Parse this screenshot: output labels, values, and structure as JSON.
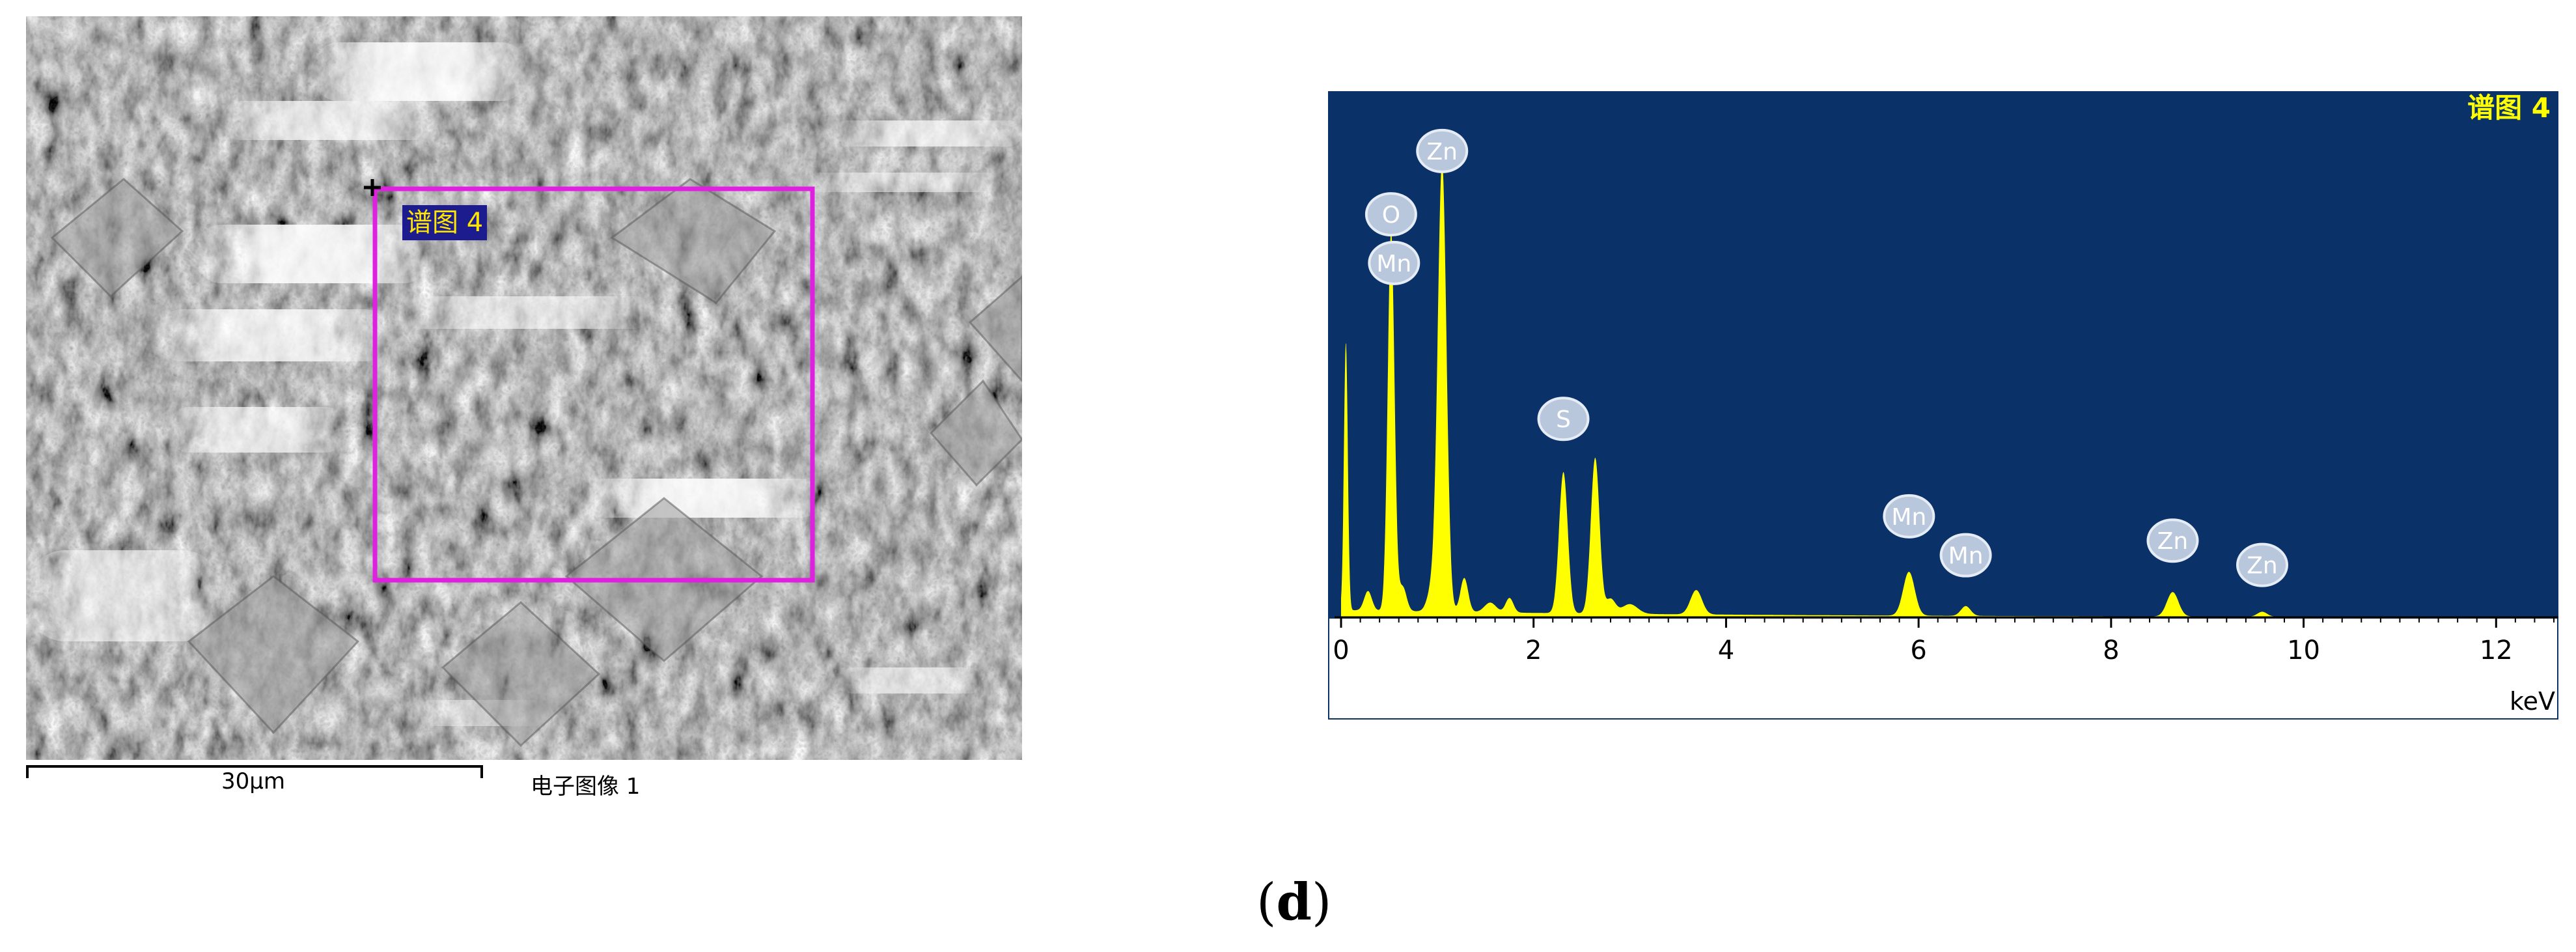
{
  "sem_image": {
    "region_label": "谱图 4",
    "scale_bar_label": "30μm",
    "image_name": "电子图像 1",
    "roi_color": "#e020e0"
  },
  "panel_label": "d",
  "chart_data": {
    "type": "line",
    "title": "",
    "spectrum_label": "谱图 4",
    "xlabel": "keV",
    "ylabel": "",
    "xlim": [
      0,
      12.6
    ],
    "ylim": [
      0,
      100
    ],
    "xticks": [
      0,
      2,
      4,
      6,
      8,
      10,
      12
    ],
    "grid": false,
    "legend": "none",
    "background_color": "#0a3168",
    "fill_color": "#ffff00",
    "peaks": [
      {
        "x": 0.05,
        "y": 55,
        "w": 0.02
      },
      {
        "x": 0.28,
        "y": 4,
        "w": 0.04
      },
      {
        "x": 0.52,
        "y": 78,
        "w": 0.035
      },
      {
        "x": 0.64,
        "y": 5,
        "w": 0.04
      },
      {
        "x": 0.95,
        "y": 5,
        "w": 0.05
      },
      {
        "x": 1.05,
        "y": 92,
        "w": 0.045
      },
      {
        "x": 1.28,
        "y": 7,
        "w": 0.04
      },
      {
        "x": 1.55,
        "y": 2,
        "w": 0.06
      },
      {
        "x": 1.75,
        "y": 3,
        "w": 0.04
      },
      {
        "x": 2.31,
        "y": 29,
        "w": 0.045
      },
      {
        "x": 2.64,
        "y": 32,
        "w": 0.045
      },
      {
        "x": 2.8,
        "y": 3,
        "w": 0.05
      },
      {
        "x": 3.0,
        "y": 2,
        "w": 0.08
      },
      {
        "x": 3.69,
        "y": 5,
        "w": 0.06
      },
      {
        "x": 5.9,
        "y": 9,
        "w": 0.06
      },
      {
        "x": 6.49,
        "y": 2,
        "w": 0.05
      },
      {
        "x": 8.64,
        "y": 5,
        "w": 0.06
      },
      {
        "x": 9.57,
        "y": 1,
        "w": 0.05
      }
    ],
    "background_level": 1.5,
    "element_labels": [
      {
        "text": "Zn",
        "x": 1.05,
        "y": 92
      },
      {
        "text": "O",
        "x": 0.52,
        "y": 79
      },
      {
        "text": "Mn",
        "x": 0.55,
        "y": 69
      },
      {
        "text": "S",
        "x": 2.31,
        "y": 37
      },
      {
        "text": "Mn",
        "x": 5.9,
        "y": 17
      },
      {
        "text": "Mn",
        "x": 6.49,
        "y": 9
      },
      {
        "text": "Zn",
        "x": 8.64,
        "y": 12
      },
      {
        "text": "Zn",
        "x": 9.57,
        "y": 7
      }
    ]
  }
}
